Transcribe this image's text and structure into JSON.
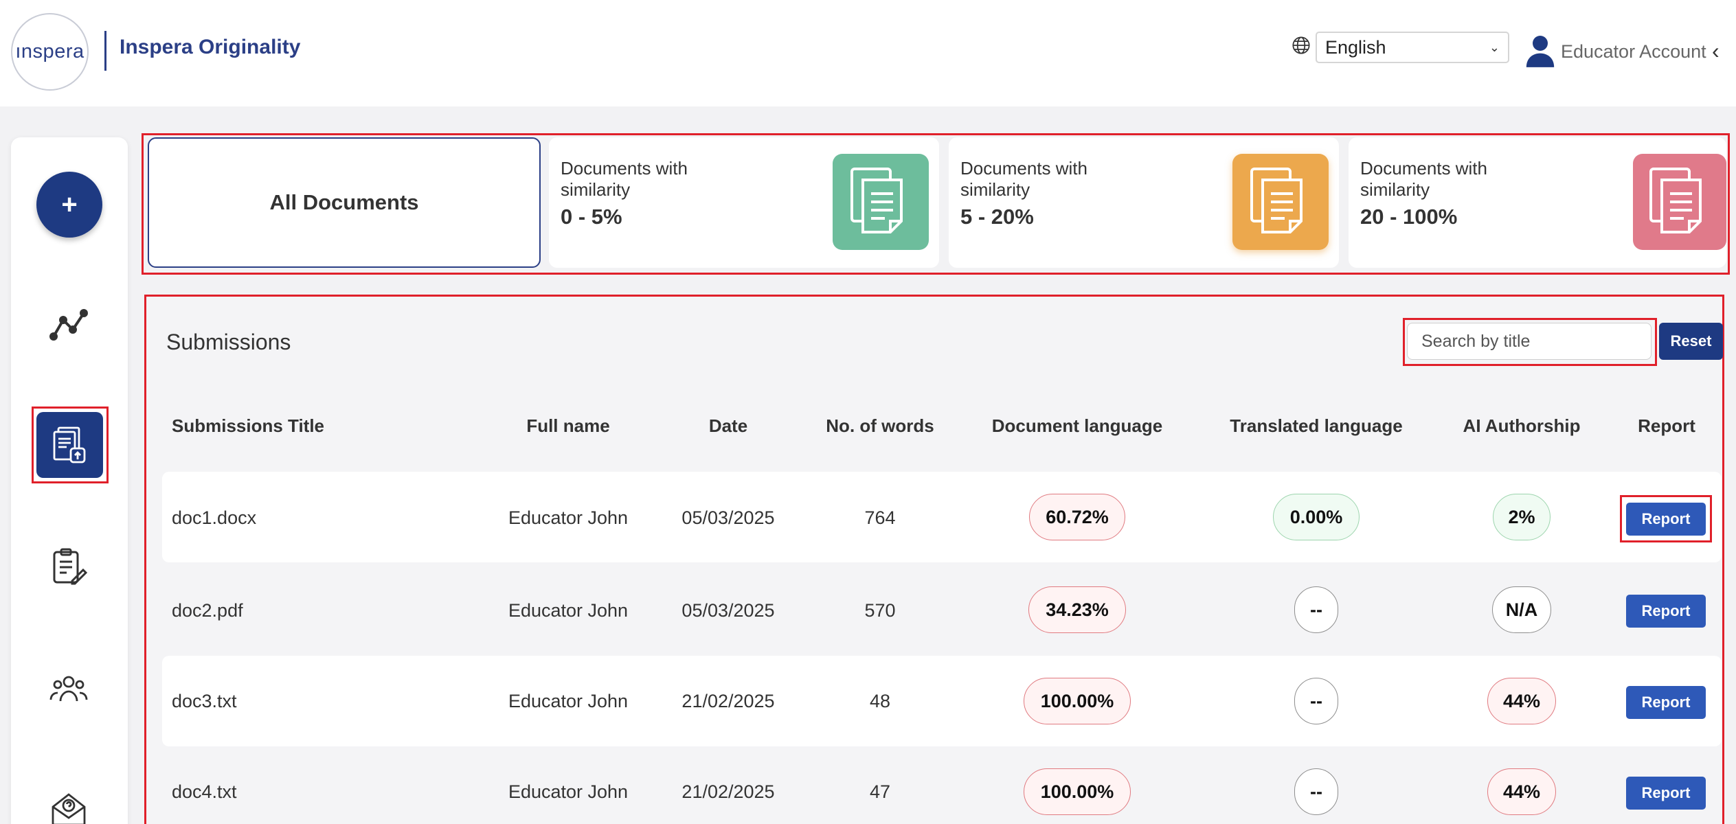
{
  "header": {
    "logo_text": "ınspera",
    "app_name": "Inspera Originality",
    "language": "English",
    "account_label": "Educator Account",
    "account_chevron": "‹"
  },
  "sidebar": {
    "add_label": "+",
    "items": [
      {
        "name": "analytics",
        "icon": "line-chart-icon"
      },
      {
        "name": "documents",
        "icon": "document-upload-icon",
        "active": true
      },
      {
        "name": "assignments",
        "icon": "clipboard-edit-icon"
      },
      {
        "name": "users",
        "icon": "users-group-icon"
      },
      {
        "name": "support",
        "icon": "mail-help-icon"
      }
    ]
  },
  "cards": {
    "all": "All Documents",
    "items": [
      {
        "label": "Documents with similarity",
        "range": "0 - 5%",
        "color": "#6dbd9c"
      },
      {
        "label": "Documents with similarity",
        "range": "5 - 20%",
        "color": "#eca84d"
      },
      {
        "label": "Documents with similarity",
        "range": "20 - 100%",
        "color": "#e07a8a"
      }
    ]
  },
  "submissions": {
    "title": "Submissions",
    "search_placeholder": "Search by title",
    "reset_label": "Reset",
    "columns": [
      "Submissions Title",
      "Full name",
      "Date",
      "No. of words",
      "Document language",
      "Translated language",
      "AI Authorship",
      "Report"
    ],
    "rows": [
      {
        "title": "doc1.docx",
        "name": "Educator John",
        "date": "05/03/2025",
        "words": "764",
        "doc_lang": "60.72%",
        "trans_lang": "0.00%",
        "ai": "2%",
        "report": "Report"
      },
      {
        "title": "doc2.pdf",
        "name": "Educator John",
        "date": "05/03/2025",
        "words": "570",
        "doc_lang": "34.23%",
        "trans_lang": "--",
        "ai": "N/A",
        "report": "Report"
      },
      {
        "title": "doc3.txt",
        "name": "Educator John",
        "date": "21/02/2025",
        "words": "48",
        "doc_lang": "100.00%",
        "trans_lang": "--",
        "ai": "44%",
        "report": "Report"
      },
      {
        "title": "doc4.txt",
        "name": "Educator John",
        "date": "21/02/2025",
        "words": "47",
        "doc_lang": "100.00%",
        "trans_lang": "--",
        "ai": "44%",
        "report": "Report"
      }
    ]
  }
}
